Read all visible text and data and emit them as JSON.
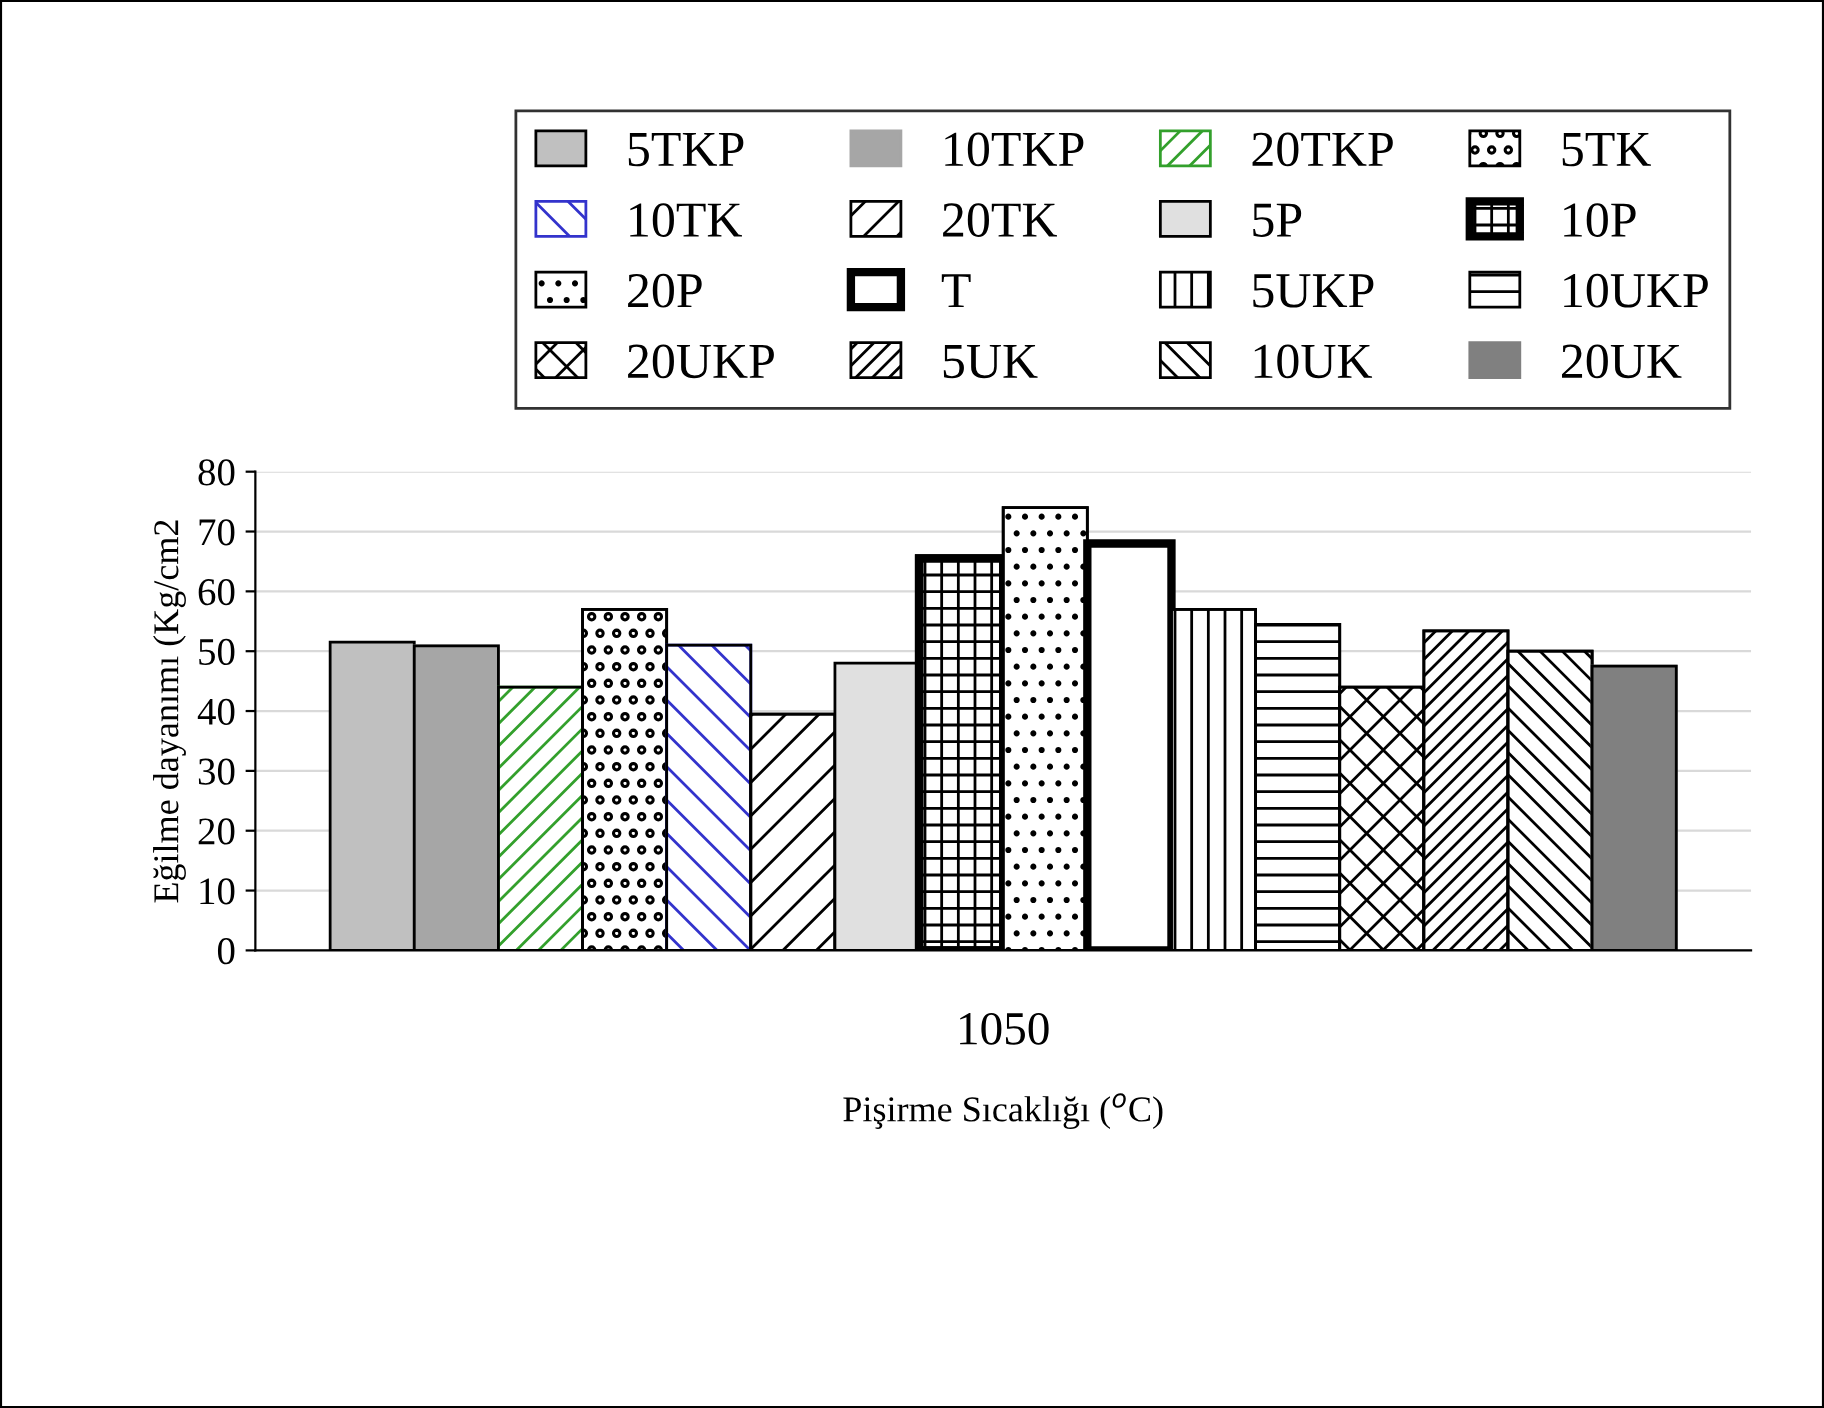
{
  "chart_data": {
    "type": "bar",
    "xlabel": "Pişirme Sıcaklığı ($^{o}$C)",
    "ylabel": "Eğilme dayanımı (Kg/cm2",
    "categories": [
      "1050"
    ],
    "series": [
      {
        "name": "5TKP",
        "color": "#c0c0c0",
        "values": [
          51.5
        ]
      },
      {
        "name": "10TKP",
        "color": "#a6a6a6",
        "values": [
          50.9
        ]
      },
      {
        "name": "20TKP",
        "color": "#33a02c",
        "values": [
          44
        ]
      },
      {
        "name": "5TK",
        "color": "#000000",
        "values": [
          57
        ]
      },
      {
        "name": "10TK",
        "color": "#3333cc",
        "values": [
          51
        ]
      },
      {
        "name": "20TK",
        "color": "#000000",
        "values": [
          39.5
        ]
      },
      {
        "name": "5P",
        "color": "#e0e0e0",
        "values": [
          48
        ]
      },
      {
        "name": "10P",
        "color": "#000000",
        "values": [
          65.5
        ]
      },
      {
        "name": "20P",
        "color": "#000000",
        "values": [
          74
        ]
      },
      {
        "name": "T",
        "color": "#000000",
        "values": [
          68
        ]
      },
      {
        "name": "5UKP",
        "color": "#000000",
        "values": [
          57
        ]
      },
      {
        "name": "10UKP",
        "color": "#000000",
        "values": [
          54.5
        ]
      },
      {
        "name": "20UKP",
        "color": "#000000",
        "values": [
          44
        ]
      },
      {
        "name": "5UK",
        "color": "#000000",
        "values": [
          53.4
        ]
      },
      {
        "name": "10UK",
        "color": "#000000",
        "values": [
          50
        ]
      },
      {
        "name": "20UK",
        "color": "#808080",
        "values": [
          47.5
        ]
      }
    ],
    "ylim": [
      0,
      80
    ],
    "yticks": [
      0,
      10,
      20,
      30,
      40,
      50,
      60,
      70,
      80
    ],
    "grid": "y",
    "legend": "top"
  }
}
